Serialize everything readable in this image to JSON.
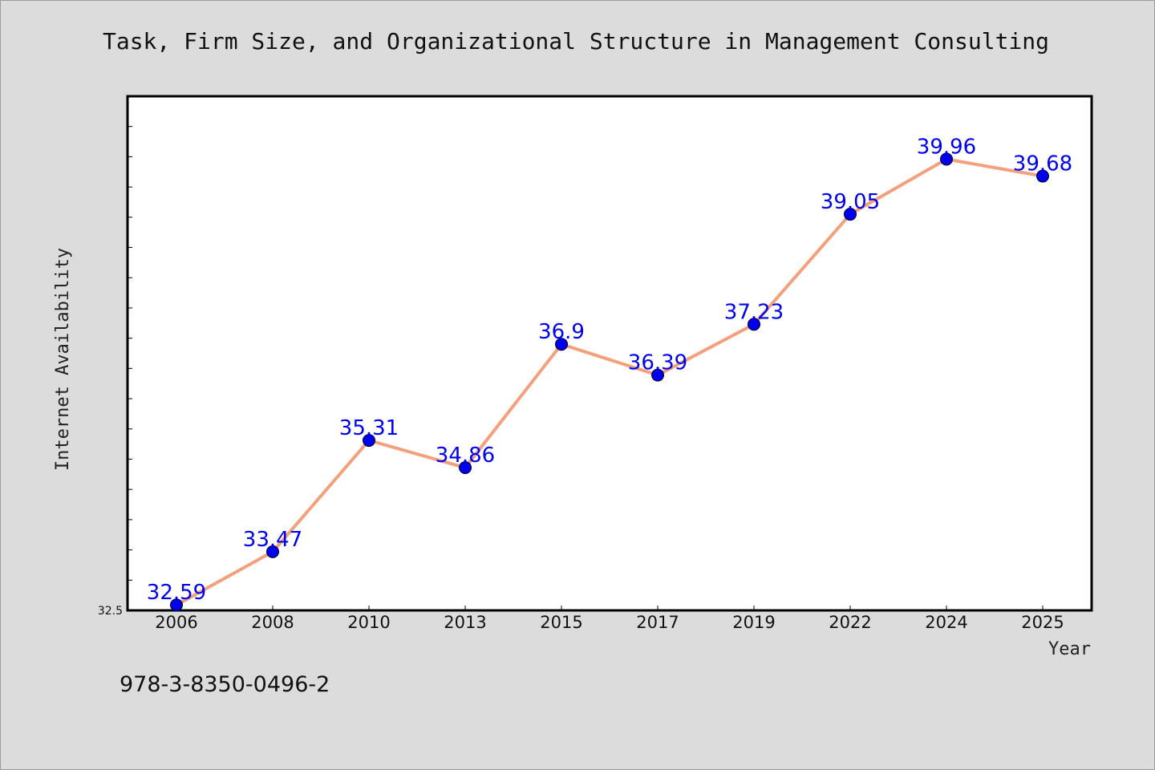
{
  "chart_data": {
    "type": "line",
    "title": "Task, Firm Size, and Organizational Structure in Management Consulting",
    "xlabel": "Year",
    "ylabel": "Internet Availability",
    "categories": [
      "2006",
      "2008",
      "2010",
      "2013",
      "2015",
      "2017",
      "2019",
      "2022",
      "2024",
      "2025"
    ],
    "series": [
      {
        "values": [
          32.59,
          33.47,
          35.31,
          34.86,
          36.9,
          36.39,
          37.23,
          39.05,
          39.96,
          39.68
        ]
      }
    ],
    "data_labels": [
      "32.59",
      "33.47",
      "35.31",
      "34.86",
      "36.9",
      "36.39",
      "37.23",
      "39.05",
      "39.96",
      "39.68"
    ],
    "ylim": [
      32.5,
      41.0
    ],
    "y_tick_labels": [
      "32.5"
    ],
    "grid": false,
    "line_color": "#f4a07c",
    "marker_color": "#0000ee",
    "label_color": "#0000ee"
  },
  "footer": {
    "isbn": "978-3-8350-0496-2"
  }
}
